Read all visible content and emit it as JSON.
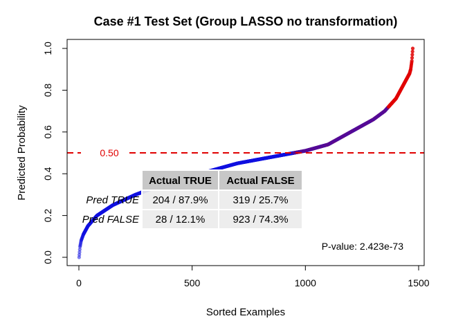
{
  "chart_data": {
    "type": "scatter",
    "title": "Case #1 Test Set (Group LASSO no transformation)",
    "xlabel": "Sorted Examples",
    "ylabel": "Predicted Probability",
    "xlim": [
      0,
      1500
    ],
    "ylim": [
      0,
      1
    ],
    "xticks": [
      0,
      500,
      1000,
      1500
    ],
    "yticks": [
      0.0,
      0.2,
      0.4,
      0.6,
      0.8,
      1.0
    ],
    "xtick_labels": [
      "0",
      "500",
      "1000",
      "1500"
    ],
    "ytick_labels": [
      "0.0",
      "0.2",
      "0.4",
      "0.6",
      "0.8",
      "1.0"
    ],
    "grid": false,
    "n_points": 1474,
    "series": [
      {
        "color": "#1010e0",
        "curve": {
          "x": [
            1,
            5,
            10,
            20,
            40,
            80,
            150,
            250,
            400,
            500,
            600,
            700,
            800,
            900,
            1000,
            1100,
            1150,
            1200,
            1250,
            1300,
            1350,
            1400,
            1430,
            1450,
            1460,
            1465,
            1470,
            1474
          ],
          "y": [
            0.0,
            0.05,
            0.08,
            0.11,
            0.15,
            0.2,
            0.25,
            0.3,
            0.36,
            0.39,
            0.42,
            0.45,
            0.47,
            0.49,
            0.51,
            0.54,
            0.57,
            0.6,
            0.63,
            0.66,
            0.7,
            0.76,
            0.82,
            0.86,
            0.88,
            0.9,
            0.94,
            1.0
          ]
        }
      }
    ],
    "overlay_color": "#e00000",
    "cutoff": {
      "value": 0.5,
      "label": "0.50",
      "color": "#e00000",
      "style": "dashed"
    },
    "annotation": "P-value: 2.423e-73",
    "table": {
      "columns": [
        "Actual TRUE",
        "Actual FALSE"
      ],
      "rows": [
        {
          "label": "Pred TRUE",
          "cells": [
            "204 / 87.9%",
            "319 / 25.7%"
          ]
        },
        {
          "label": "Pred FALSE",
          "cells": [
            "28 / 12.1%",
            "923 / 74.3%"
          ]
        }
      ]
    }
  }
}
